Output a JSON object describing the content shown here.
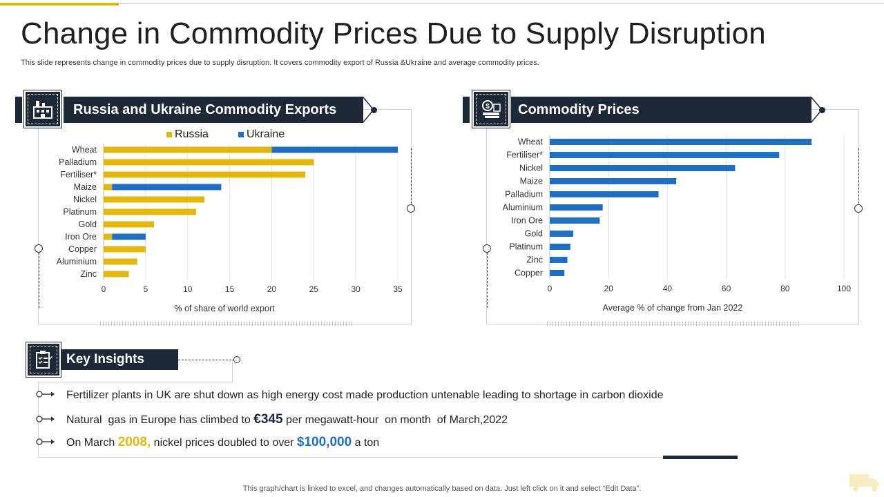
{
  "slide": {
    "title": "Change in Commodity Prices Due to Supply Disruption",
    "subtitle": "This slide represents change in commodity prices due to supply disruption. It covers commodity export of Russia &Ukraine and average commodity prices.",
    "footer": "This graph/chart is linked to excel,  and changes automatically based on data. Just left click on it and select “Edit Data”."
  },
  "panels": {
    "exports_title": "Russia and Ukraine Commodity Exports",
    "prices_title": "Commodity Prices",
    "insights_title": "Key Insights"
  },
  "icons": {
    "exports": "factory-icon",
    "prices": "money-coins-icon",
    "insights": "clipboard-checklist-icon",
    "corner": "truck-icon"
  },
  "insights": {
    "i1": {
      "text": "Fertilizer plants in UK are shut down as high energy cost made production untenable  leading to shortage in carbon dioxide"
    },
    "i2": {
      "pre": "Natural  gas in Europe has climbed to ",
      "value": "€345",
      "post": " per megawatt-hour  on month  of March,2022"
    },
    "i3": {
      "pre": "On March ",
      "year": "2008,",
      "mid": " nickel prices doubled to over ",
      "value": "$100,000",
      "post": " a ton"
    }
  },
  "colors": {
    "russia": "#e2b80c",
    "ukraine": "#1f6fc5",
    "prices": "#1f6fc5",
    "dark": "#1e2937"
  },
  "chart_data": [
    {
      "type": "bar",
      "orientation": "horizontal",
      "stacked": true,
      "title": "Russia and Ukraine Commodity Exports",
      "categories": [
        "Wheat",
        "Palladium",
        "Fertiliser*",
        "Maize",
        "Nickel",
        "Platinum",
        "Gold",
        "Iron Ore",
        "Copper",
        "Aluminium",
        "Zinc"
      ],
      "series": [
        {
          "name": "Russia",
          "values": [
            20,
            25,
            24,
            1,
            12,
            11,
            6,
            1,
            5,
            4,
            3
          ]
        },
        {
          "name": "Ukraine",
          "values": [
            15,
            0,
            0,
            13,
            0,
            0,
            0,
            4,
            0,
            0,
            0
          ]
        }
      ],
      "xlabel": "% of share of world export",
      "ylabel": "",
      "xlim": [
        0,
        35
      ],
      "xticks": [
        0,
        5,
        10,
        15,
        20,
        25,
        30,
        35
      ],
      "legend": "top"
    },
    {
      "type": "bar",
      "orientation": "horizontal",
      "title": "Commodity Prices",
      "categories": [
        "Wheat",
        "Fertiliser*",
        "Nickel",
        "Maize",
        "Palladium",
        "Aluminium",
        "Iron Ore",
        "Gold",
        "Platinum",
        "Zinc",
        "Copper"
      ],
      "values": [
        89,
        78,
        63,
        43,
        37,
        18,
        17,
        8,
        7,
        6,
        5
      ],
      "xlabel": "Average  % of change from Jan 2022",
      "ylabel": "",
      "xlim": [
        0,
        100
      ],
      "xticks": [
        0,
        20,
        40,
        60,
        80,
        100
      ]
    }
  ]
}
